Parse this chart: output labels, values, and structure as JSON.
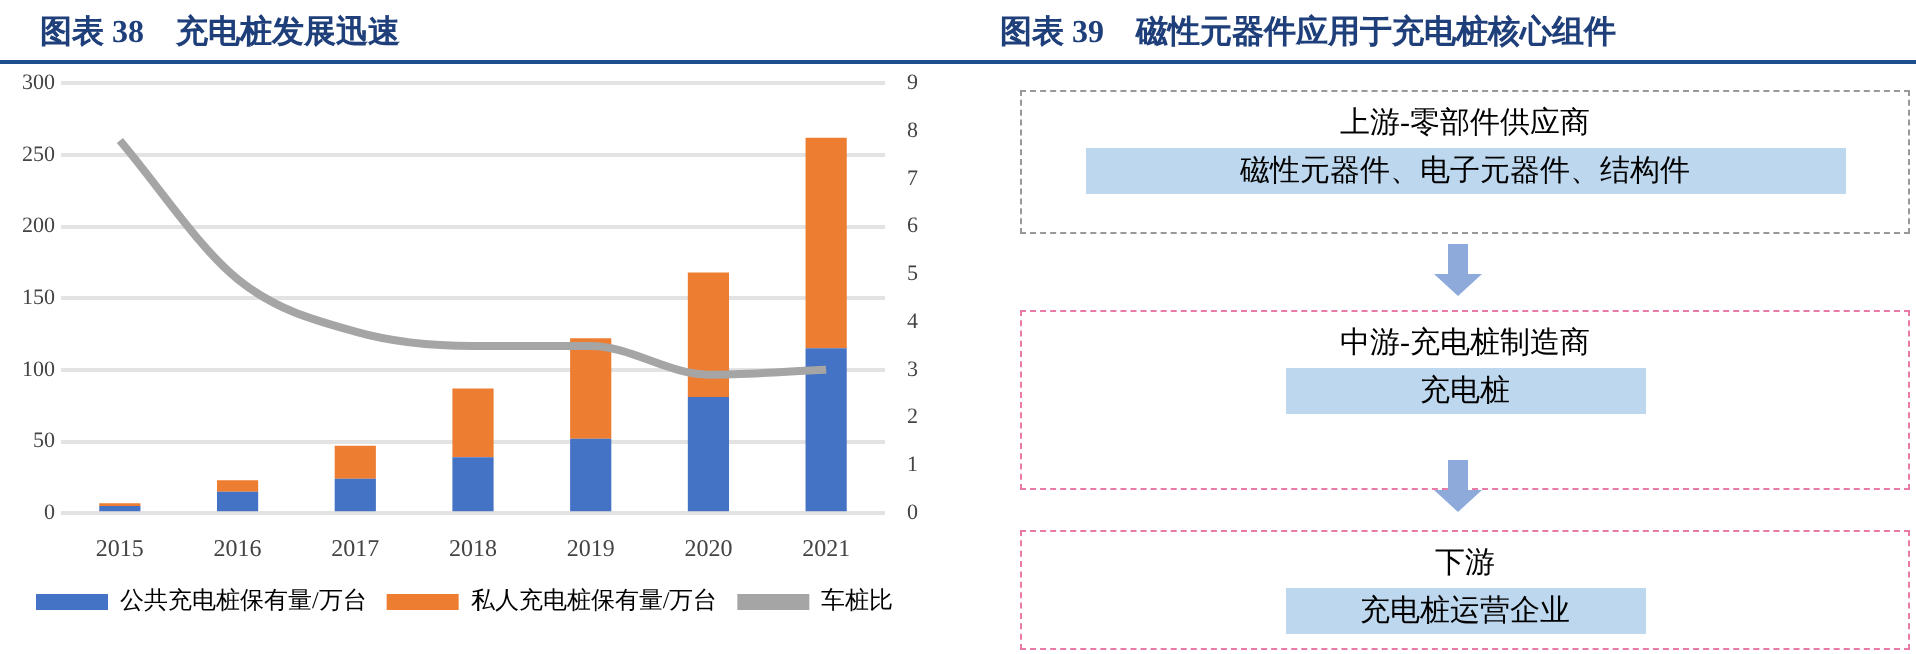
{
  "chart_data": [
    {
      "type": "bar",
      "title": "图表 38　充电桩发展迅速",
      "categories": [
        "2015",
        "2016",
        "2017",
        "2018",
        "2019",
        "2020",
        "2021"
      ],
      "stacked": true,
      "series": [
        {
          "name": "公共充电桩保有量/万台",
          "color": "#4472c4",
          "values": [
            5,
            15,
            24,
            39,
            52,
            81,
            115
          ]
        },
        {
          "name": "私人充电桩保有量/万台",
          "color": "#ed7d31",
          "values": [
            2,
            8,
            23,
            48,
            70,
            87,
            147
          ]
        },
        {
          "name": "车桩比",
          "color": "#a5a5a5",
          "type": "line",
          "axis": "y2",
          "values": [
            7.8,
            4.9,
            3.8,
            3.5,
            3.5,
            2.9,
            3.0
          ]
        }
      ],
      "ylim": [
        0,
        300
      ],
      "yticks": [
        0,
        50,
        100,
        150,
        200,
        250,
        300
      ],
      "y2lim": [
        0,
        9
      ],
      "y2ticks": [
        0,
        1,
        2,
        3,
        4,
        5,
        6,
        7,
        8,
        9
      ],
      "grid": "y",
      "legend": "bottom",
      "marker": "none"
    },
    {
      "type": "other",
      "title": "图表 39　磁性元器件应用于充电桩核心组件",
      "annotations": [
        "上游-零部件供应商",
        "磁性元器件、电子元器件、结构件",
        "中游-充电桩制造商",
        "充电桩",
        "下游",
        "充电桩运营企业"
      ]
    }
  ]
}
